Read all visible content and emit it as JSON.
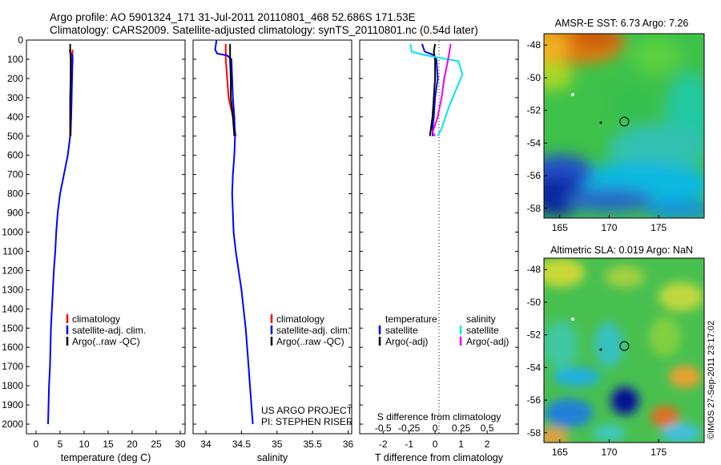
{
  "header": {
    "line1": "Argo profile: AO 5901324_171 31-Jul-2011 20110801_468 52.686S 171.53E",
    "line2": "Climatology: CARS2009. Satellite-adjusted climatology: synTS_20110801.nc (0.54d later)"
  },
  "colors": {
    "climatology": "#ff0000",
    "satellite": "#0000ff",
    "argo": "#000000",
    "sal_satellite": "#00e5ee",
    "sal_argo": "#ee00ee"
  },
  "chart_data": [
    {
      "type": "line",
      "xlabel": "temperature (deg C)",
      "xticks": [
        "0",
        "5",
        "10",
        "15",
        "20",
        "25",
        "30"
      ],
      "xlim": [
        -2,
        31
      ],
      "ylim": [
        2050,
        0
      ],
      "yticks": [
        "0",
        "100",
        "200",
        "300",
        "400",
        "500",
        "600",
        "700",
        "800",
        "900",
        "1000",
        "1100",
        "1200",
        "1300",
        "1400",
        "1500",
        "1600",
        "1700",
        "1800",
        "1900",
        "2000"
      ],
      "legend": [
        "climatology",
        "satellite-adj. clim.",
        "Argo(..raw -QC)"
      ],
      "series": [
        {
          "name": "climatology",
          "points": [
            [
              7.6,
              50
            ],
            [
              7.5,
              100
            ],
            [
              7.4,
              200
            ],
            [
              7.4,
              300
            ],
            [
              7.3,
              400
            ],
            [
              7.2,
              500
            ]
          ]
        },
        {
          "name": "satellite-adj. clim.",
          "points": [
            [
              7.0,
              50
            ],
            [
              7.1,
              65
            ],
            [
              7.6,
              80
            ],
            [
              7.6,
              100
            ],
            [
              7.5,
              200
            ],
            [
              7.4,
              300
            ],
            [
              7.3,
              400
            ],
            [
              7.1,
              500
            ],
            [
              6.6,
              600
            ],
            [
              5.8,
              700
            ],
            [
              5.0,
              800
            ],
            [
              4.5,
              900
            ],
            [
              4.2,
              1000
            ],
            [
              4.0,
              1100
            ],
            [
              3.7,
              1200
            ],
            [
              3.5,
              1300
            ],
            [
              3.3,
              1400
            ],
            [
              3.1,
              1500
            ],
            [
              3.0,
              1600
            ],
            [
              2.9,
              1700
            ],
            [
              2.7,
              1800
            ],
            [
              2.6,
              1900
            ],
            [
              2.5,
              2000
            ]
          ]
        },
        {
          "name": "Argo(..raw -QC)",
          "points": [
            [
              7.1,
              20
            ],
            [
              7.1,
              50
            ],
            [
              7.2,
              100
            ],
            [
              7.2,
              200
            ],
            [
              7.1,
              300
            ],
            [
              7.1,
              400
            ],
            [
              7.1,
              500
            ]
          ]
        }
      ]
    },
    {
      "type": "line",
      "xlabel": "salinity",
      "xticks": [
        "34",
        "34.5",
        "35",
        "35.5",
        "36"
      ],
      "xlim": [
        33.82,
        36.05
      ],
      "ylim": [
        2050,
        0
      ],
      "legend": [
        "climatology",
        "satellite-adj. clim.",
        "Argo(..raw -QC)"
      ],
      "annotation": [
        "US ARGO PROJECT",
        "PI: STEPHEN RISER"
      ],
      "series": [
        {
          "name": "climatology",
          "points": [
            [
              34.28,
              20
            ],
            [
              34.28,
              100
            ],
            [
              34.3,
              200
            ],
            [
              34.32,
              300
            ],
            [
              34.38,
              400
            ],
            [
              34.42,
              500
            ]
          ]
        },
        {
          "name": "satellite-adj. clim.",
          "points": [
            [
              34.15,
              0
            ],
            [
              34.13,
              50
            ],
            [
              34.16,
              70
            ],
            [
              34.3,
              80
            ],
            [
              34.36,
              100
            ],
            [
              34.37,
              200
            ],
            [
              34.38,
              300
            ],
            [
              34.4,
              400
            ],
            [
              34.41,
              500
            ],
            [
              34.4,
              600
            ],
            [
              34.38,
              700
            ],
            [
              34.37,
              800
            ],
            [
              34.38,
              900
            ],
            [
              34.39,
              1000
            ],
            [
              34.42,
              1100
            ],
            [
              34.46,
              1200
            ],
            [
              34.5,
              1300
            ],
            [
              34.53,
              1400
            ],
            [
              34.56,
              1500
            ],
            [
              34.58,
              1600
            ],
            [
              34.6,
              1700
            ],
            [
              34.62,
              1800
            ],
            [
              34.64,
              1900
            ],
            [
              34.66,
              2000
            ]
          ]
        },
        {
          "name": "Argo(..raw -QC)",
          "points": [
            [
              34.34,
              20
            ],
            [
              34.34,
              100
            ],
            [
              34.35,
              200
            ],
            [
              34.35,
              300
            ],
            [
              34.38,
              400
            ],
            [
              34.4,
              500
            ]
          ]
        }
      ]
    },
    {
      "type": "line",
      "xlabel_t": "T difference from climatology",
      "xlabel_s": "S difference from climatology",
      "xticks_t": [
        "-2",
        "-1",
        "0",
        "1",
        "2"
      ],
      "xticks_s": [
        "-0.5",
        "-0.25",
        "0",
        "0.25",
        "0.5"
      ],
      "xlim": [
        -2.9,
        3.2
      ],
      "ylim": [
        2050,
        0
      ],
      "legend_titles": [
        "temperature",
        "salinity"
      ],
      "legend": [
        "satellite",
        "Argo(-adj)",
        "satellite",
        "Argo(-adj)"
      ],
      "series": [
        {
          "name": "satellite",
          "points": [
            [
              -0.5,
              20
            ],
            [
              -0.4,
              60
            ],
            [
              -0.1,
              75
            ],
            [
              0.05,
              100
            ],
            [
              0.1,
              200
            ],
            [
              0.0,
              300
            ],
            [
              -0.05,
              400
            ],
            [
              -0.1,
              460
            ],
            [
              -0.1,
              500
            ]
          ]
        },
        {
          "name": "Argo(-adj)",
          "points": [
            [
              0.0,
              20
            ],
            [
              -0.05,
              60
            ],
            [
              0.0,
              100
            ],
            [
              0.0,
              200
            ],
            [
              -0.05,
              300
            ],
            [
              -0.1,
              400
            ],
            [
              -0.2,
              500
            ]
          ]
        },
        {
          "name": "satellite",
          "points": [
            [
              -0.95,
              20
            ],
            [
              -0.9,
              60
            ],
            [
              -0.5,
              75
            ],
            [
              0.1,
              90
            ],
            [
              0.9,
              110
            ],
            [
              1.05,
              180
            ],
            [
              0.8,
              260
            ],
            [
              0.55,
              340
            ],
            [
              0.4,
              400
            ],
            [
              0.25,
              460
            ],
            [
              0.1,
              500
            ]
          ]
        },
        {
          "name": "Argo(-adj)",
          "points": [
            [
              0.6,
              20
            ],
            [
              0.55,
              60
            ],
            [
              0.5,
              100
            ],
            [
              0.35,
              200
            ],
            [
              0.25,
              300
            ],
            [
              0.1,
              400
            ],
            [
              -0.1,
              480
            ],
            [
              0.0,
              500
            ]
          ]
        }
      ]
    },
    {
      "type": "heatmap",
      "title": "AMSR-E SST: 6.73 Argo: 7.26",
      "xticks": [
        "165",
        "170",
        "175"
      ],
      "yticks": [
        "-48",
        "-50",
        "-52",
        "-54",
        "-56",
        "-58"
      ],
      "argo_position": {
        "lon": 171.53,
        "lat": -52.686
      }
    },
    {
      "type": "heatmap",
      "title": "Altimetric SLA: 0.019 Argo: NaN",
      "xticks": [
        "165",
        "170",
        "175"
      ],
      "yticks": [
        "-48",
        "-50",
        "-52",
        "-54",
        "-56",
        "-58"
      ],
      "argo_position": {
        "lon": 171.53,
        "lat": -52.686
      }
    }
  ],
  "credit": "©IMOS 27-Sep-2011 23:17:02"
}
